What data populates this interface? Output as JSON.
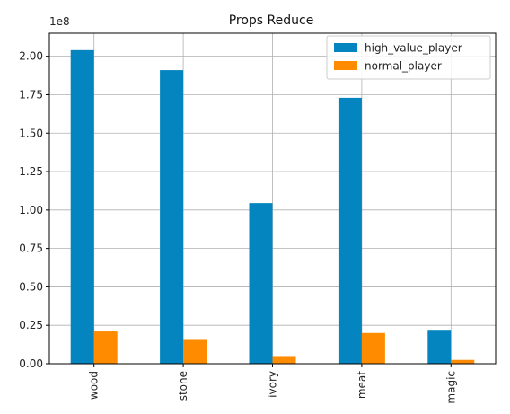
{
  "chart_data": {
    "type": "bar",
    "title": "Props Reduce",
    "xlabel": "",
    "ylabel": "",
    "y_multiplier_label": "1e8",
    "y_scale": 100000000,
    "categories": [
      "wood",
      "stone",
      "ivory",
      "meat",
      "magic"
    ],
    "series": [
      {
        "name": "high_value_player",
        "color": "#0485bf",
        "values": [
          204000000,
          191000000,
          104500000,
          173000000,
          21500000
        ]
      },
      {
        "name": "normal_player",
        "color": "#ff8c00",
        "values": [
          21000000,
          15500000,
          5000000,
          20000000,
          2500000
        ]
      }
    ],
    "ylim": [
      0,
      215000000
    ],
    "yticks": [
      0,
      25000000,
      50000000,
      75000000,
      100000000,
      125000000,
      150000000,
      175000000,
      200000000
    ],
    "ytick_labels": [
      "0.00",
      "0.25",
      "0.50",
      "0.75",
      "1.00",
      "1.25",
      "1.50",
      "1.75",
      "2.00"
    ],
    "grid": true,
    "legend_position": "top-right"
  }
}
